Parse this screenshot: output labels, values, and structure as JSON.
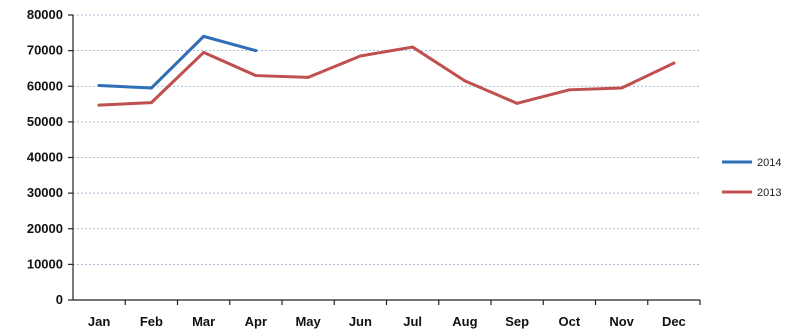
{
  "chart_data": {
    "type": "line",
    "title": "",
    "xlabel": "",
    "ylabel": "",
    "ylim": [
      0,
      80000
    ],
    "yticks": [
      0,
      10000,
      20000,
      30000,
      40000,
      50000,
      60000,
      70000,
      80000
    ],
    "grid": true,
    "legend_position": "right",
    "categories": [
      "Jan",
      "Feb",
      "Mar",
      "Apr",
      "May",
      "Jun",
      "Jul",
      "Aug",
      "Sep",
      "Oct",
      "Nov",
      "Dec"
    ],
    "series": [
      {
        "name": "2014",
        "color": "#2e6fb7",
        "values": [
          60200,
          59500,
          74000,
          70000,
          null,
          null,
          null,
          null,
          null,
          null,
          null,
          null
        ]
      },
      {
        "name": "2013",
        "color": "#c0504d",
        "values": [
          54700,
          55400,
          69500,
          63000,
          62500,
          68500,
          71000,
          61500,
          55200,
          59000,
          59500,
          66500
        ]
      }
    ]
  }
}
